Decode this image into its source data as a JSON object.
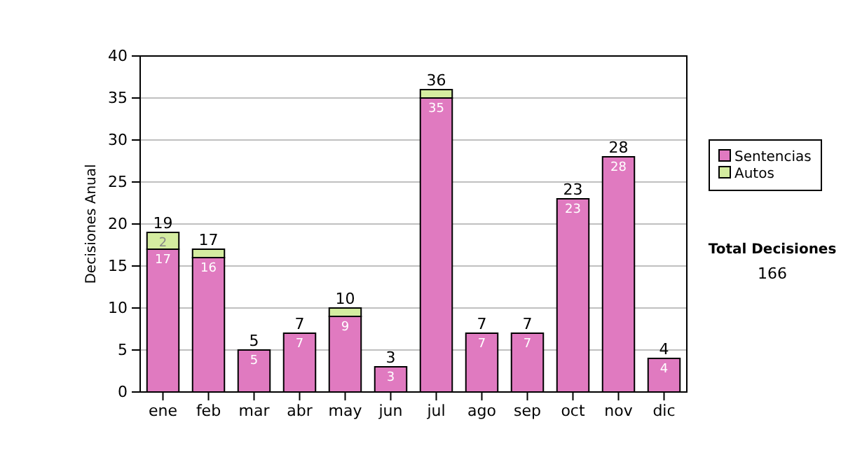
{
  "chart_data": {
    "type": "bar",
    "stacked": true,
    "ylabel": "Decisiones Anual",
    "categories": [
      "ene",
      "feb",
      "mar",
      "abr",
      "may",
      "jun",
      "jul",
      "ago",
      "sep",
      "oct",
      "nov",
      "dic"
    ],
    "series": [
      {
        "name": "Sentencias",
        "color": "#e07ac0",
        "values": [
          17,
          16,
          5,
          7,
          9,
          3,
          35,
          7,
          7,
          23,
          28,
          4
        ],
        "value_labels": [
          "17",
          "16",
          "5",
          "7",
          "9",
          "3",
          "35",
          "7",
          "7",
          "23",
          "28",
          "4"
        ]
      },
      {
        "name": "Autos",
        "color": "#d4eca0",
        "values": [
          2,
          1,
          0,
          0,
          1,
          0,
          1,
          0,
          0,
          0,
          0,
          0
        ],
        "value_labels": [
          "2",
          null,
          null,
          null,
          null,
          null,
          null,
          null,
          null,
          null,
          null,
          null
        ]
      }
    ],
    "totals": [
      "19",
      "17",
      "5",
      "7",
      "10",
      "3",
      "36",
      "7",
      "7",
      "23",
      "28",
      "4"
    ],
    "ylim": [
      0,
      40
    ],
    "yticks": [
      0,
      5,
      10,
      15,
      20,
      25,
      30,
      35,
      40
    ],
    "grid": "y",
    "legend": "right",
    "annotations": [
      "Total Decisiones",
      "166"
    ]
  }
}
